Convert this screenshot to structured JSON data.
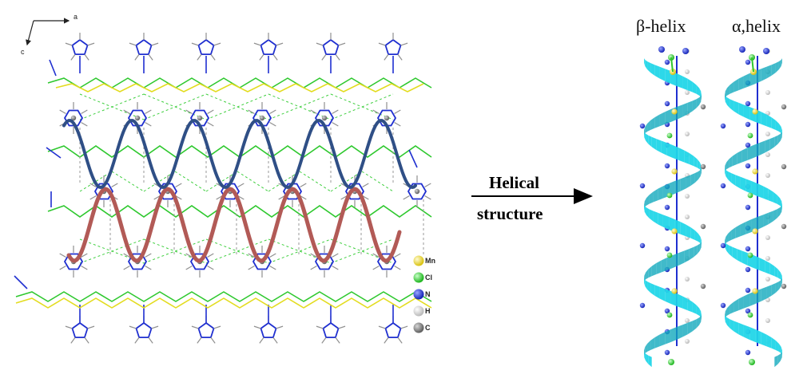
{
  "axes": {
    "a_label": "a",
    "c_label": "c"
  },
  "arrow": {
    "line1": "Helical",
    "line2": "structure"
  },
  "helix_titles": {
    "beta": "β-helix",
    "alpha": "α,helix"
  },
  "legend": {
    "items": [
      {
        "symbol": "Mn",
        "color": "#e8d21a"
      },
      {
        "symbol": "Cl",
        "color": "#2ec82e"
      },
      {
        "symbol": "N",
        "color": "#1f2fd0"
      },
      {
        "symbol": "H",
        "color": "#d8d8d8"
      },
      {
        "symbol": "C",
        "color": "#7c7c7c"
      }
    ]
  },
  "colors": {
    "blue_wave": "#2f4f86",
    "red_wave": "#b25a56",
    "ribbon": "#22d6e8",
    "ribbon_dark": "#11a9bd",
    "bond_blue": "#1f2fd0",
    "bond_yellow": "#e3dc1f",
    "bond_green": "#2ec82e",
    "bond_grey": "#8f8f8f"
  }
}
